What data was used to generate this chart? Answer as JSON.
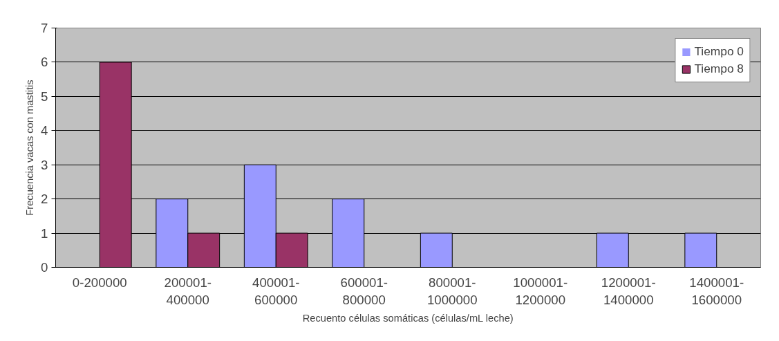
{
  "chart_data": {
    "type": "bar",
    "xlabel": "Recuento células somáticas (células/mL leche)",
    "ylabel": "Frecuencia vacas con mastitis",
    "categories": [
      "0-200000",
      "200001-400000",
      "400001-600000",
      "600001-800000",
      "800001-1000000",
      "1000001-1200000",
      "1200001-1400000",
      "1400001-1600000"
    ],
    "series": [
      {
        "name": "Tiempo 0",
        "color": "#9999ff",
        "values": [
          0,
          2,
          3,
          2,
          1,
          0,
          1,
          1
        ]
      },
      {
        "name": "Tiempo 8",
        "color": "#993366",
        "values": [
          6,
          1,
          1,
          0,
          0,
          0,
          0,
          0
        ]
      }
    ],
    "ylim": [
      0,
      7
    ],
    "yticks": [
      0,
      1,
      2,
      3,
      4,
      5,
      6,
      7
    ],
    "grid": "y",
    "legend": "top right"
  }
}
